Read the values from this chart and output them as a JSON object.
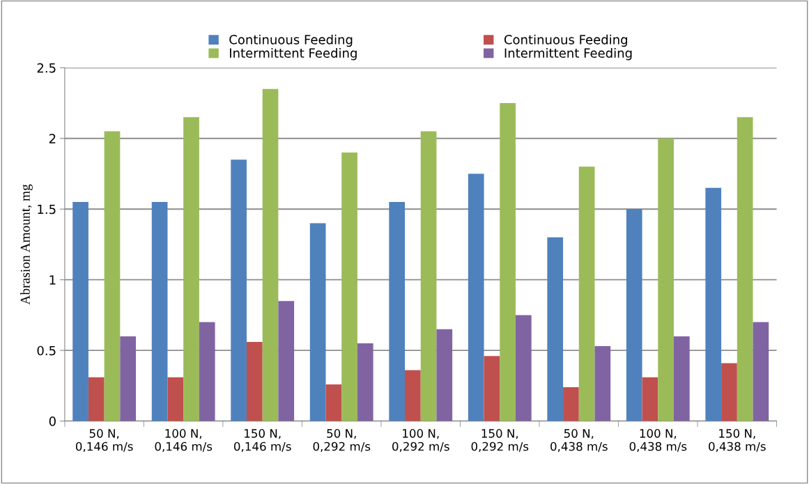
{
  "chart_data": {
    "type": "bar",
    "ylabel": "Abrasion Amount, mg",
    "categories": [
      "50 N, 0,146 m/s",
      "100 N, 0,146 m/s",
      "150 N, 0,146 m/s",
      "50 N, 0,292 m/s",
      "100 N, 0,292 m/s",
      "150 N, 0,292 m/s",
      "50 N, 0,438 m/s",
      "100 N, 0,438 m/s",
      "150 N, 0,438 m/s"
    ],
    "series": [
      {
        "name": "Continuous Feeding",
        "color": "#4f81bd",
        "values": [
          1.55,
          1.55,
          1.85,
          1.4,
          1.55,
          1.75,
          1.3,
          1.5,
          1.65
        ]
      },
      {
        "name": "Continuous Feeding",
        "color": "#c0504d",
        "values": [
          0.31,
          0.31,
          0.56,
          0.26,
          0.36,
          0.46,
          0.24,
          0.31,
          0.41
        ]
      },
      {
        "name": "Intermittent Feeding",
        "color": "#9bbb59",
        "values": [
          2.05,
          2.15,
          2.35,
          1.9,
          2.05,
          2.25,
          1.8,
          2.0,
          2.15
        ]
      },
      {
        "name": "Intermittent Feeding",
        "color": "#8064a2",
        "values": [
          0.6,
          0.7,
          0.85,
          0.55,
          0.65,
          0.75,
          0.53,
          0.6,
          0.7
        ]
      }
    ],
    "ylim": [
      0,
      2.5
    ],
    "yticks": [
      0,
      0.5,
      1,
      1.5,
      2,
      2.5
    ],
    "grid": "y",
    "legend": "top"
  }
}
